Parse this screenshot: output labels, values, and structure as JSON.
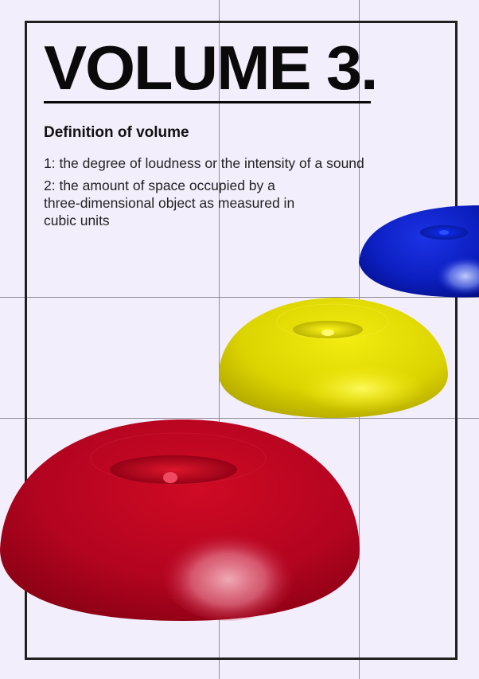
{
  "poster": {
    "title": "VOLUME 3.",
    "heading": "Definition of volume",
    "definitions": [
      "1: the degree of loudness or the intensity of a sound",
      "2: the amount of space occupied by a three-dimensional object as measured in cubic units"
    ]
  },
  "shapes": [
    {
      "name": "blue-torus",
      "color": "#0a1fb8"
    },
    {
      "name": "yellow-torus",
      "color": "#e8e000"
    },
    {
      "name": "red-torus",
      "color": "#b8001c"
    }
  ]
}
